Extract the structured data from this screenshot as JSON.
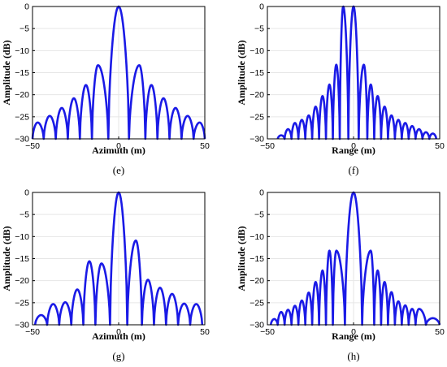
{
  "chart_data": [
    {
      "id": "e",
      "type": "line",
      "caption": "(e)",
      "xlabel": "Azimuth (m)",
      "ylabel": "Amplitude (dB)",
      "xlim": [
        -50,
        50
      ],
      "ylim": [
        -30,
        0
      ],
      "xticks": [
        -50,
        0,
        50
      ],
      "yticks": [
        0,
        -5,
        -10,
        -15,
        -20,
        -25,
        -30
      ],
      "grid": true,
      "color": "#1a1ae6",
      "series": [
        {
          "x": [
            -47,
            -40,
            -33,
            -26,
            -19,
            -12,
            0,
            12,
            19,
            26,
            33,
            40,
            47
          ],
          "values": [
            -26.3,
            -24.8,
            -23.0,
            -20.8,
            -17.8,
            -13.3,
            0,
            -13.3,
            -17.8,
            -20.8,
            -23.0,
            -24.8,
            -26.3
          ]
        }
      ]
    },
    {
      "id": "f",
      "type": "line",
      "caption": "(f)",
      "xlabel": "Range (m)",
      "ylabel": "Amplitude (dB)",
      "xlim": [
        -50,
        50
      ],
      "ylim": [
        -30,
        0
      ],
      "xticks": [
        -50,
        0,
        50
      ],
      "yticks": [
        0,
        -5,
        -10,
        -15,
        -20,
        -25,
        -30
      ],
      "grid": true,
      "color": "#1a1ae6",
      "series": [
        {
          "x": [
            -42,
            -38,
            -34,
            -30,
            -26,
            -22,
            -18,
            -14,
            -10,
            -6,
            0,
            6,
            10,
            14,
            18,
            22,
            26,
            30,
            34,
            38,
            42,
            46
          ],
          "values": [
            -29.2,
            -27.8,
            -26.4,
            -25.7,
            -24.7,
            -22.7,
            -20.3,
            -17.7,
            -13.2,
            0,
            0,
            -13.2,
            -17.7,
            -20.3,
            -22.7,
            -24.7,
            -25.7,
            -26.4,
            -27.1,
            -27.8,
            -28.5,
            -28.8
          ]
        }
      ]
    },
    {
      "id": "g",
      "type": "line",
      "caption": "(g)",
      "xlabel": "Azimuth (m)",
      "ylabel": "Amplitude (dB)",
      "xlim": [
        -50,
        50
      ],
      "ylim": [
        -30,
        0
      ],
      "xticks": [
        -50,
        0,
        50
      ],
      "yticks": [
        0,
        -5,
        -10,
        -15,
        -20,
        -25,
        -30
      ],
      "grid": true,
      "color": "#1a1ae6",
      "series": [
        {
          "x": [
            -45,
            -38,
            -31,
            -24,
            -17,
            -10,
            0,
            10,
            17,
            24,
            31,
            38,
            45
          ],
          "values": [
            -27.8,
            -25.3,
            -24.9,
            -22.0,
            -15.6,
            -16.1,
            0,
            -10.9,
            -19.8,
            -21.6,
            -23.0,
            -25.2,
            -25.3
          ]
        }
      ]
    },
    {
      "id": "h",
      "type": "line",
      "caption": "(h)",
      "xlabel": "Range (m)",
      "ylabel": "Amplitude (dB)",
      "xlim": [
        -50,
        50
      ],
      "ylim": [
        -30,
        0
      ],
      "xticks": [
        -50,
        0,
        50
      ],
      "yticks": [
        0,
        -5,
        -10,
        -15,
        -20,
        -25,
        -30
      ],
      "grid": true,
      "color": "#1a1ae6",
      "series": [
        {
          "x": [
            -46,
            -42,
            -38,
            -34,
            -30,
            -26,
            -22,
            -18,
            -14,
            -10,
            0,
            10,
            14,
            18,
            22,
            26,
            30,
            34,
            38,
            46
          ],
          "values": [
            -28.7,
            -27.1,
            -26.6,
            -25.7,
            -24.5,
            -22.7,
            -20.3,
            -17.7,
            -13.2,
            -13.2,
            0,
            -13.2,
            -17.7,
            -20.3,
            -22.6,
            -24.7,
            -25.6,
            -26.4,
            -26.4,
            -28.5
          ]
        }
      ]
    }
  ]
}
